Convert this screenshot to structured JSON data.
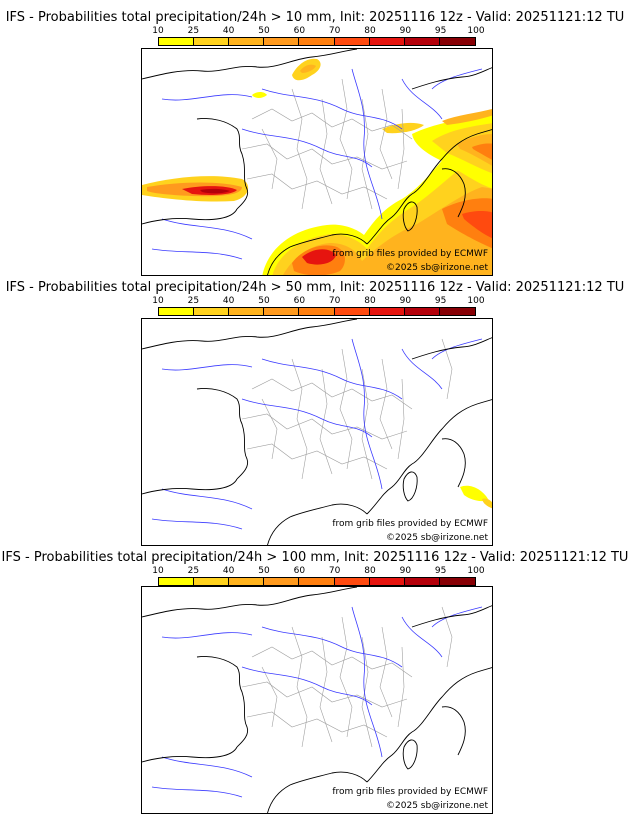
{
  "panels": [
    {
      "title": "IFS - Probabilities total precipitation/24h > 10 mm, Init: 20251116 12z - Valid: 20251121:12 TU",
      "source": "from grib files provided by ECMWF",
      "copyright": "©2025 sb@irizone.net"
    },
    {
      "title": "IFS - Probabilities total precipitation/24h > 50 mm, Init: 20251116 12z - Valid: 20251121:12 TU",
      "source": "from grib files provided by ECMWF",
      "copyright": "©2025 sb@irizone.net"
    },
    {
      "title": "IFS - Probabilities total precipitation/24h > 100 mm, Init: 20251116 12z - Valid: 20251121:12 TU",
      "source": "from grib files provided by ECMWF",
      "copyright": "©2025 sb@irizone.net"
    }
  ],
  "scale": {
    "labels": [
      "10",
      "25",
      "40",
      "50",
      "60",
      "70",
      "80",
      "90",
      "95",
      "100"
    ],
    "colors": [
      "#ffff00",
      "#ffd21e",
      "#ffb31e",
      "#ff9a1e",
      "#ff7f0f",
      "#ff4a0f",
      "#e6140f",
      "#b4000a",
      "#870005"
    ]
  },
  "colors": {
    "coast": "#000000",
    "rivers": "#3a3aff",
    "borders": "#a0a0a0"
  }
}
